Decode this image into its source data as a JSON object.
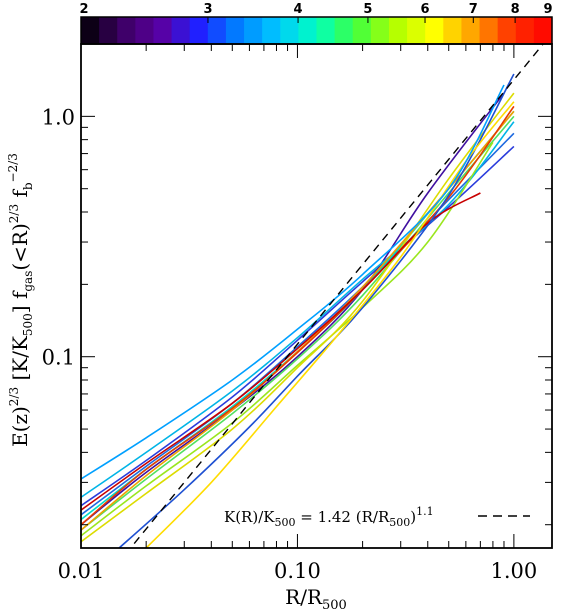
{
  "chart_data": {
    "type": "line",
    "xlabel": "R/R500",
    "ylabel": "E(z)^2/3 [K/K500] fgas(<R)^2/3 fb^-2/3",
    "x_scale": "log",
    "y_scale": "log",
    "xlim": [
      0.01,
      1.5
    ],
    "ylim": [
      0.016,
      2.0
    ],
    "x_ticks": [
      "0.01",
      "0.10",
      "1.00"
    ],
    "y_ticks": [
      "0.1",
      "1.0"
    ],
    "colorbar": {
      "ticks": [
        "2",
        "3",
        "4",
        "5",
        "6",
        "7",
        "8",
        "9"
      ],
      "range": [
        2,
        9
      ],
      "scale": "log",
      "colors": [
        "#000000",
        "#3a0060",
        "#5a00a0",
        "#2020ff",
        "#0080ff",
        "#00c8ff",
        "#00ffc0",
        "#40ff40",
        "#b0ff00",
        "#ffff00",
        "#ffa000",
        "#ff3000",
        "#ff0000"
      ]
    },
    "reference_line": {
      "label": "K(R)/K500 = 1.42 (R/R500)^1.1",
      "normalization": 1.42,
      "slope": 1.1,
      "style": "dashed"
    },
    "series": [
      {
        "color": "#2a3cdc",
        "x": [
          0.01,
          0.02,
          0.05,
          0.1,
          0.2,
          0.5,
          1.0
        ],
        "y": [
          0.024,
          0.037,
          0.068,
          0.117,
          0.205,
          0.42,
          0.75
        ]
      },
      {
        "color": "#1e6ae0",
        "x": [
          0.01,
          0.02,
          0.05,
          0.1,
          0.2,
          0.5,
          1.0
        ],
        "y": [
          0.022,
          0.035,
          0.064,
          0.11,
          0.195,
          0.45,
          0.85
        ]
      },
      {
        "color": "#4010a0",
        "x": [
          0.01,
          0.02,
          0.05,
          0.1,
          0.2,
          0.4,
          0.9
        ],
        "y": [
          0.02,
          0.033,
          0.06,
          0.1,
          0.19,
          0.48,
          1.25
        ]
      },
      {
        "color": "#00b4e6",
        "x": [
          0.01,
          0.02,
          0.05,
          0.1,
          0.2,
          0.5,
          1.0
        ],
        "y": [
          0.026,
          0.04,
          0.072,
          0.12,
          0.21,
          0.43,
          0.95
        ]
      },
      {
        "color": "#00dcc8",
        "x": [
          0.01,
          0.02,
          0.05,
          0.1,
          0.2,
          0.5,
          1.0
        ],
        "y": [
          0.021,
          0.034,
          0.062,
          0.105,
          0.19,
          0.5,
          1.05
        ]
      },
      {
        "color": "#50e060",
        "x": [
          0.01,
          0.02,
          0.05,
          0.1,
          0.2,
          0.5,
          1.0
        ],
        "y": [
          0.019,
          0.031,
          0.058,
          0.098,
          0.18,
          0.48,
          1.0
        ]
      },
      {
        "color": "#9ae61e",
        "x": [
          0.01,
          0.02,
          0.05,
          0.1,
          0.2,
          0.4,
          0.8
        ],
        "y": [
          0.018,
          0.029,
          0.053,
          0.092,
          0.16,
          0.3,
          0.78
        ]
      },
      {
        "color": "#dcdc00",
        "x": [
          0.01,
          0.02,
          0.05,
          0.1,
          0.2,
          0.5,
          1.0
        ],
        "y": [
          0.017,
          0.027,
          0.05,
          0.09,
          0.17,
          0.55,
          1.25
        ]
      },
      {
        "color": "#f0a000",
        "x": [
          0.01,
          0.02,
          0.05,
          0.1,
          0.2,
          0.5,
          1.0
        ],
        "y": [
          0.019,
          0.032,
          0.06,
          0.105,
          0.195,
          0.5,
          1.05
        ]
      },
      {
        "color": "#e63c00",
        "x": [
          0.01,
          0.02,
          0.05,
          0.1,
          0.2,
          0.5,
          1.0
        ],
        "y": [
          0.02,
          0.034,
          0.061,
          0.104,
          0.19,
          0.46,
          1.1
        ]
      },
      {
        "color": "#c80000",
        "x": [
          0.01,
          0.02,
          0.05,
          0.1,
          0.2,
          0.4,
          0.7
        ],
        "y": [
          0.023,
          0.036,
          0.064,
          0.108,
          0.19,
          0.36,
          0.48
        ]
      },
      {
        "color": "#1e50d2",
        "x": [
          0.015,
          0.03,
          0.06,
          0.1,
          0.2,
          0.5,
          1.0
        ],
        "y": [
          0.016,
          0.028,
          0.051,
          0.083,
          0.16,
          0.47,
          1.5
        ]
      },
      {
        "color": "#ffdc00",
        "x": [
          0.02,
          0.04,
          0.08,
          0.15,
          0.3,
          0.6,
          1.0
        ],
        "y": [
          0.016,
          0.03,
          0.062,
          0.12,
          0.26,
          0.65,
          1.15
        ]
      },
      {
        "color": "#00a0ff",
        "x": [
          0.01,
          0.02,
          0.05,
          0.1,
          0.2,
          0.5,
          0.9
        ],
        "y": [
          0.031,
          0.046,
          0.08,
          0.13,
          0.22,
          0.5,
          1.35
        ]
      }
    ]
  }
}
